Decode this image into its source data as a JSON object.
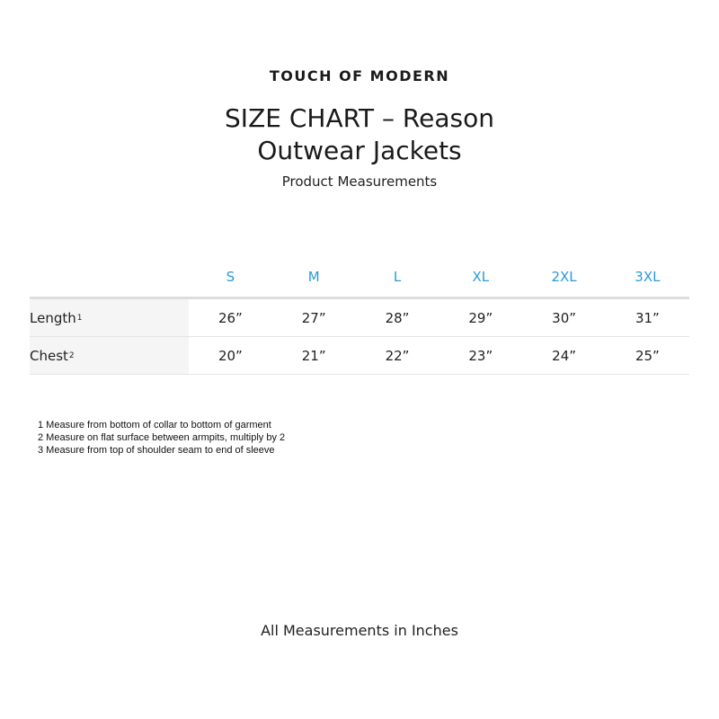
{
  "brand": "TOUCH OF MODERN",
  "title_line1": "SIZE CHART – Reason",
  "title_line2": "Outwear Jackets",
  "subtitle": "Product Measurements",
  "colors": {
    "size_header": "#2a9ad8",
    "label_bg": "#f5f5f5"
  },
  "table": {
    "sizes": [
      "S",
      "M",
      "L",
      "XL",
      "2XL",
      "3XL"
    ],
    "rows": [
      {
        "label": "Length",
        "note": "1",
        "values": [
          "26”",
          "27”",
          "28”",
          "29”",
          "30”",
          "31”"
        ]
      },
      {
        "label": "Chest",
        "note": "2",
        "values": [
          "20”",
          "21”",
          "22”",
          "23”",
          "24”",
          "25”"
        ]
      }
    ]
  },
  "notes": [
    "1 Measure from bottom of collar to bottom of garment",
    "2 Measure on flat surface between armpits, multiply by 2",
    "3 Measure from top of shoulder seam to end of sleeve"
  ],
  "footer": "All Measurements in Inches"
}
